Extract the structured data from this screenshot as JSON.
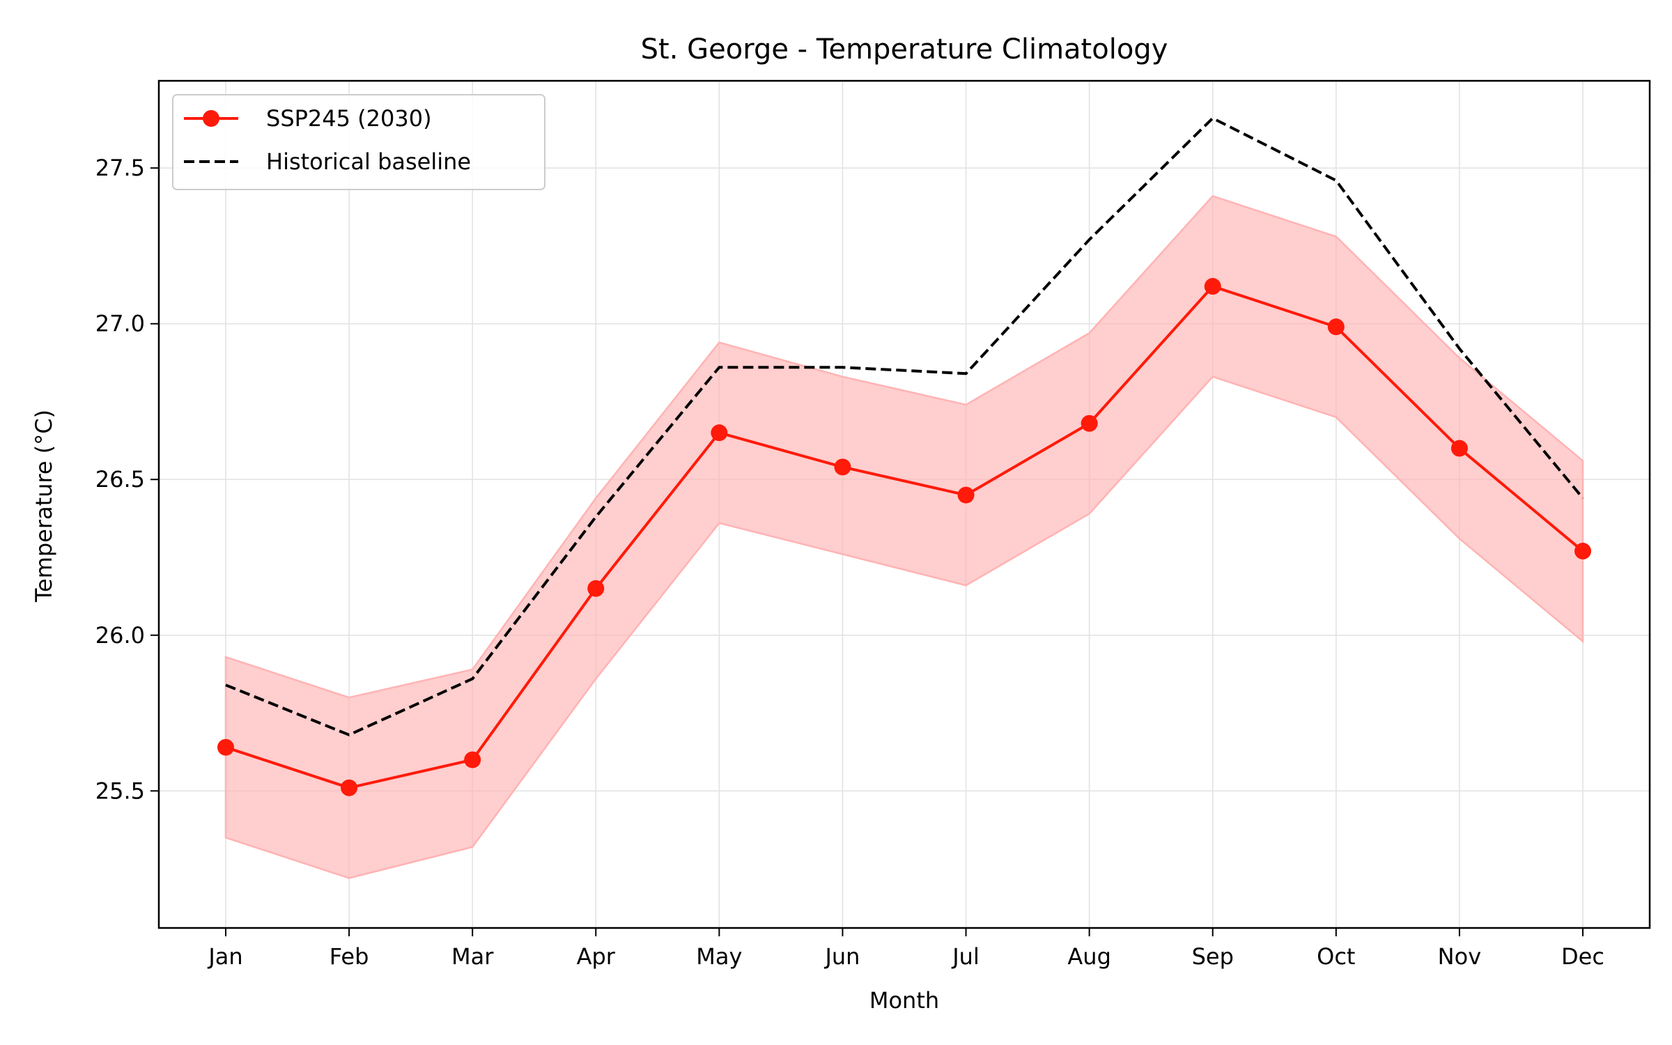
{
  "chart_data": {
    "type": "line",
    "title": "St. George - Temperature Climatology",
    "xlabel": "Month",
    "ylabel": "Temperature (°C)",
    "categories": [
      "Jan",
      "Feb",
      "Mar",
      "Apr",
      "May",
      "Jun",
      "Jul",
      "Aug",
      "Sep",
      "Oct",
      "Nov",
      "Dec"
    ],
    "ylim": [
      25.06,
      27.78
    ],
    "yticks": [
      25.5,
      26.0,
      26.5,
      27.0,
      27.5
    ],
    "ytick_labels": [
      "25.5",
      "26.0",
      "26.5",
      "27.0",
      "27.5"
    ],
    "grid": true,
    "legend_position": "top-left",
    "series": [
      {
        "name": "SSP245 (2030)",
        "style": "solid-with-markers",
        "color": "#ff1a0a",
        "values": [
          25.64,
          25.51,
          25.6,
          26.15,
          26.65,
          26.54,
          26.45,
          26.68,
          27.12,
          26.99,
          26.6,
          26.27
        ],
        "band_lower": [
          25.35,
          25.22,
          25.32,
          25.86,
          26.36,
          26.26,
          26.16,
          26.39,
          26.83,
          26.7,
          26.31,
          25.98
        ],
        "band_upper": [
          25.93,
          25.8,
          25.89,
          26.44,
          26.94,
          26.83,
          26.74,
          26.97,
          27.41,
          27.28,
          26.89,
          26.56
        ],
        "band_color": "#ffb3b3"
      },
      {
        "name": "Historical baseline",
        "style": "dashed",
        "color": "#000000",
        "values": [
          25.84,
          25.68,
          25.86,
          26.38,
          26.86,
          26.86,
          26.84,
          27.27,
          27.66,
          27.46,
          26.92,
          26.44
        ]
      }
    ]
  }
}
